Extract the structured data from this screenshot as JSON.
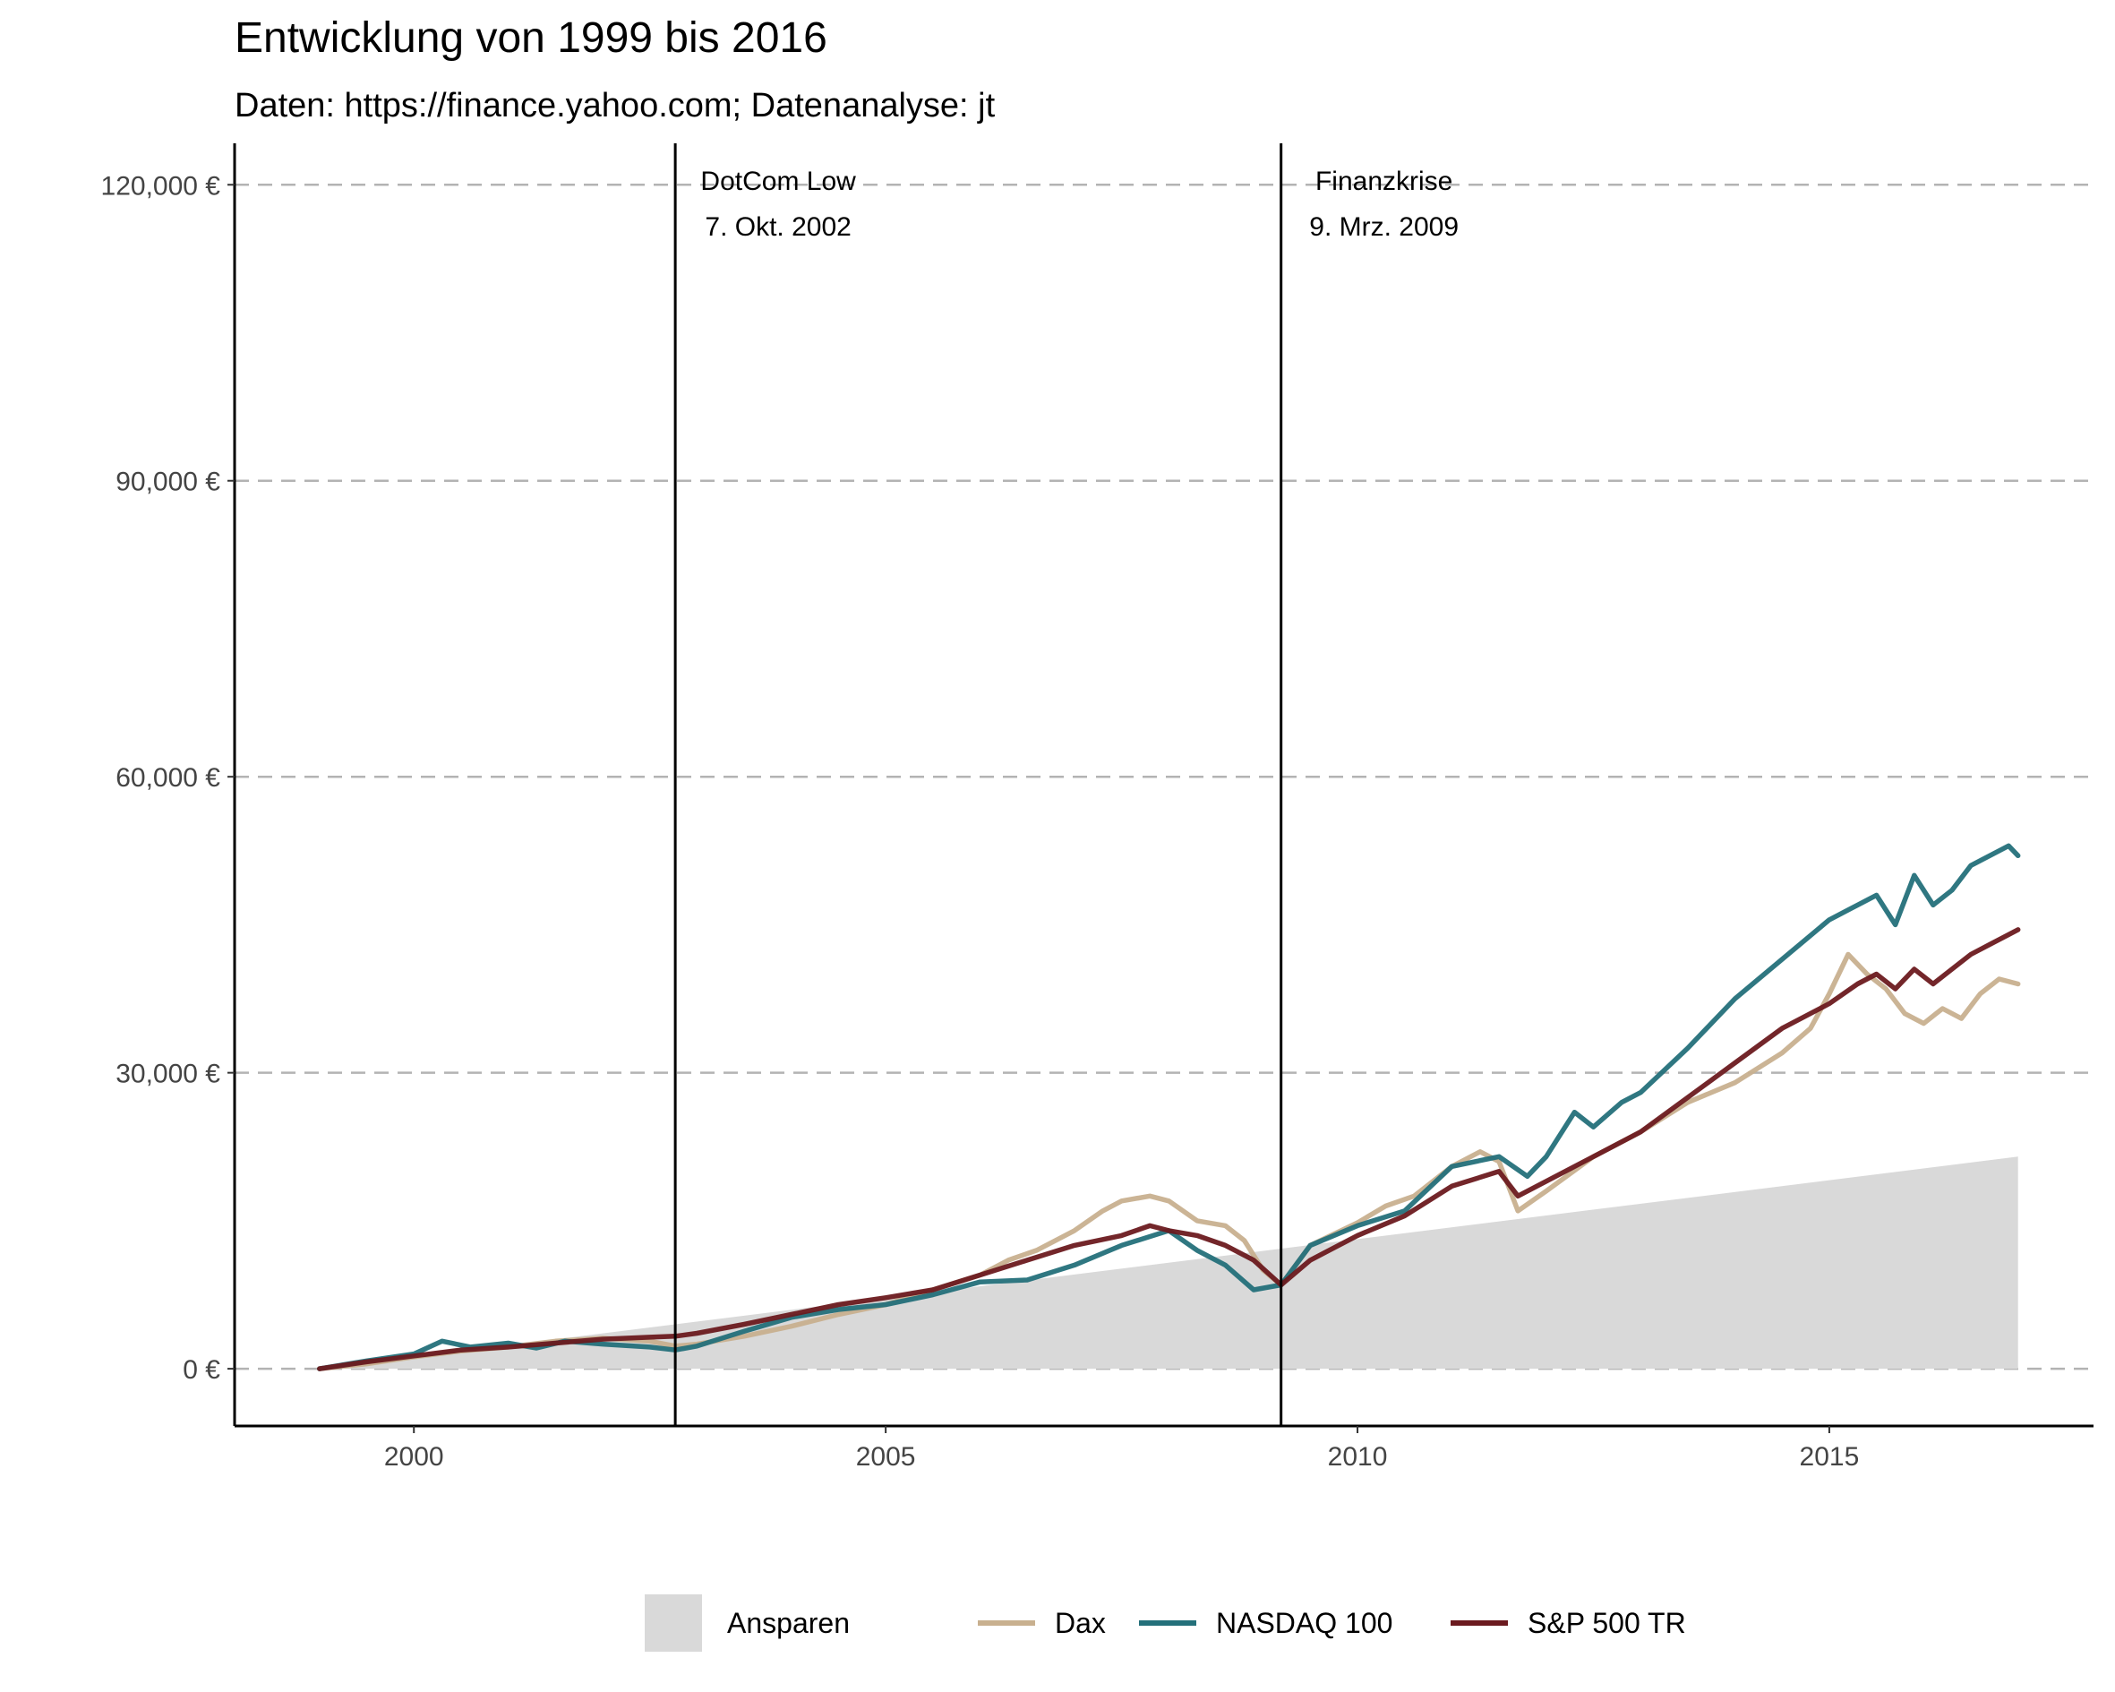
{
  "chart_data": {
    "type": "line",
    "title": "Entwicklung von 1999 bis 2016",
    "subtitle": "Daten: https://finance.yahoo.com; Datenanalyse: jt",
    "xlabel": "",
    "ylabel": "",
    "xlim": [
      1998.1,
      2017.8
    ],
    "ylim": [
      -5800,
      124200
    ],
    "x_ticks": [
      2000,
      2005,
      2010,
      2015
    ],
    "y_ticks": [
      0,
      30000,
      60000,
      90000,
      120000
    ],
    "y_tick_labels": [
      "0 €",
      "30,000 €",
      "60,000 €",
      "90,000 €",
      "120,000 €"
    ],
    "grid": "horizontal dashed",
    "legend_position": "bottom",
    "events": [
      {
        "x": 2002.77,
        "label_line1": "DotCom Low",
        "label_line2": "7. Okt. 2002"
      },
      {
        "x": 2009.19,
        "label_line1": "Finanzkrise",
        "label_line2": "9. Mrz. 2009"
      }
    ],
    "area": {
      "name": "Ansparen",
      "color": "#d9d9d9",
      "x": [
        1999.0,
        2017.0
      ],
      "values": [
        0,
        21500
      ]
    },
    "series": [
      {
        "name": "Dax",
        "color": "#c8b08f",
        "x": [
          1999.0,
          1999.5,
          2000.0,
          2000.5,
          2001.0,
          2001.5,
          2002.0,
          2002.5,
          2002.77,
          2003.0,
          2003.5,
          2004.0,
          2004.5,
          2005.0,
          2005.5,
          2006.0,
          2006.3,
          2006.6,
          2007.0,
          2007.3,
          2007.5,
          2007.8,
          2008.0,
          2008.3,
          2008.6,
          2008.8,
          2009.0,
          2009.19,
          2009.5,
          2010.0,
          2010.3,
          2010.6,
          2011.0,
          2011.3,
          2011.5,
          2011.7,
          2012.0,
          2012.5,
          2013.0,
          2013.5,
          2014.0,
          2014.5,
          2014.8,
          2015.0,
          2015.2,
          2015.4,
          2015.6,
          2015.8,
          2016.0,
          2016.2,
          2016.4,
          2016.6,
          2016.8,
          2017.0
        ],
        "values": [
          0,
          500,
          1200,
          1800,
          2200,
          2800,
          3100,
          2800,
          2300,
          2500,
          3300,
          4300,
          5500,
          6500,
          8000,
          9500,
          11000,
          12000,
          14000,
          16000,
          17000,
          17500,
          17000,
          15000,
          14500,
          13000,
          10000,
          8500,
          12500,
          14800,
          16500,
          17500,
          20500,
          22000,
          21000,
          16000,
          18000,
          21500,
          24000,
          27000,
          29000,
          32000,
          34500,
          38000,
          42000,
          40000,
          38500,
          36000,
          35000,
          36500,
          35500,
          38000,
          39500,
          39000
        ]
      },
      {
        "name": "NASDAQ 100",
        "color": "#24707a",
        "x": [
          1999.0,
          1999.5,
          2000.0,
          2000.3,
          2000.6,
          2001.0,
          2001.3,
          2001.6,
          2002.0,
          2002.5,
          2002.77,
          2003.0,
          2003.5,
          2004.0,
          2004.5,
          2005.0,
          2005.5,
          2006.0,
          2006.5,
          2007.0,
          2007.5,
          2008.0,
          2008.3,
          2008.6,
          2008.9,
          2009.19,
          2009.5,
          2010.0,
          2010.5,
          2011.0,
          2011.5,
          2011.8,
          2012.0,
          2012.3,
          2012.5,
          2012.8,
          2013.0,
          2013.5,
          2014.0,
          2014.5,
          2015.0,
          2015.3,
          2015.5,
          2015.7,
          2015.9,
          2016.1,
          2016.3,
          2016.5,
          2016.7,
          2016.9,
          2017.0
        ],
        "values": [
          0,
          800,
          1500,
          2800,
          2200,
          2600,
          2100,
          2800,
          2500,
          2200,
          1900,
          2300,
          3800,
          5200,
          6000,
          6500,
          7500,
          8800,
          9000,
          10500,
          12500,
          14000,
          12000,
          10500,
          8000,
          8500,
          12500,
          14500,
          16000,
          20500,
          21500,
          19500,
          21500,
          26000,
          24500,
          27000,
          28000,
          32500,
          37500,
          41500,
          45500,
          47000,
          48000,
          45000,
          50000,
          47000,
          48500,
          51000,
          52000,
          53000,
          52000
        ]
      },
      {
        "name": "S&P 500 TR",
        "color": "#6b1a1f",
        "x": [
          1999.0,
          1999.5,
          2000.0,
          2000.5,
          2001.0,
          2001.5,
          2002.0,
          2002.5,
          2002.77,
          2003.0,
          2003.5,
          2004.0,
          2004.5,
          2005.0,
          2005.5,
          2006.0,
          2006.5,
          2007.0,
          2007.5,
          2007.8,
          2008.0,
          2008.3,
          2008.6,
          2008.9,
          2009.19,
          2009.5,
          2010.0,
          2010.5,
          2011.0,
          2011.5,
          2011.7,
          2012.0,
          2012.5,
          2013.0,
          2013.5,
          2014.0,
          2014.5,
          2015.0,
          2015.3,
          2015.5,
          2015.7,
          2015.9,
          2016.1,
          2016.3,
          2016.5,
          2016.7,
          2016.9,
          2017.0
        ],
        "values": [
          0,
          700,
          1300,
          1900,
          2200,
          2600,
          3000,
          3200,
          3300,
          3600,
          4500,
          5500,
          6500,
          7200,
          8000,
          9500,
          11000,
          12500,
          13500,
          14500,
          14000,
          13500,
          12500,
          11000,
          8500,
          11000,
          13500,
          15500,
          18500,
          20000,
          17500,
          19000,
          21500,
          24000,
          27500,
          31000,
          34500,
          37000,
          39000,
          40000,
          38500,
          40500,
          39000,
          40500,
          42000,
          43000,
          44000,
          44500
        ]
      }
    ]
  }
}
